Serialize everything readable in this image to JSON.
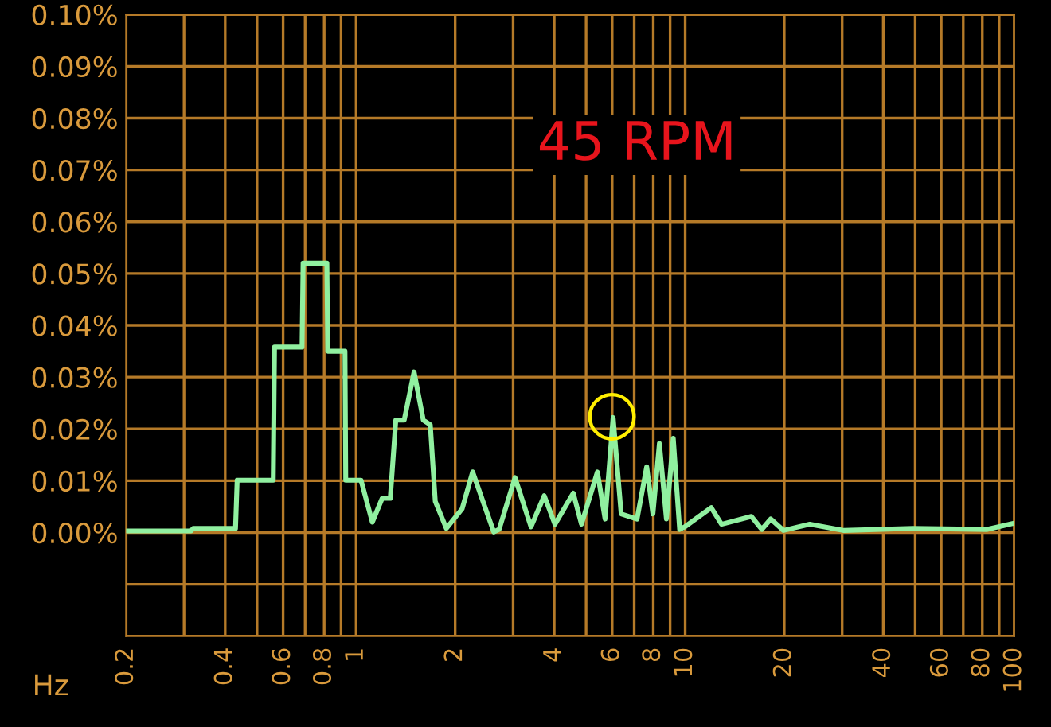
{
  "chart_data": {
    "type": "line",
    "xlabel": "Hz",
    "log": "x",
    "grid": true,
    "legend": false,
    "marker": "none",
    "line_style": "solid",
    "annotations": [
      "45 RPM"
    ],
    "xlim": [
      0.2,
      100
    ],
    "xticks": [
      0.2,
      {
        "value": 0.3,
        "label": null
      },
      0.4,
      {
        "value": 0.5,
        "label": null
      },
      0.6,
      {
        "value": 0.7,
        "label": null
      },
      0.8,
      {
        "value": 0.9,
        "label": null
      },
      1,
      2,
      {
        "value": 3,
        "label": null
      },
      4,
      {
        "value": 5,
        "label": null
      },
      6,
      {
        "value": 7,
        "label": null
      },
      8,
      {
        "value": 9,
        "label": null
      },
      10,
      20,
      {
        "value": 30,
        "label": null
      },
      40,
      {
        "value": 50,
        "label": null
      },
      60,
      {
        "value": 70,
        "label": null
      },
      80,
      {
        "value": 90,
        "label": null
      },
      100
    ],
    "ylim": [
      -0.02,
      0.1
    ],
    "yticks": [
      {
        "value": -0.02,
        "label": null
      },
      {
        "value": -0.01,
        "label": null
      },
      {
        "value": 0,
        "label": "0.00%"
      },
      {
        "value": 0.01,
        "label": "0.01%"
      },
      {
        "value": 0.02,
        "label": "0.02%"
      },
      {
        "value": 0.03,
        "label": "0.03%"
      },
      {
        "value": 0.04,
        "label": "0.04%"
      },
      {
        "value": 0.05,
        "label": "0.05%"
      },
      {
        "value": 0.06,
        "label": "0.06%"
      },
      {
        "value": 0.07,
        "label": "0.07%"
      },
      {
        "value": 0.08,
        "label": "0.08%"
      },
      {
        "value": 0.09,
        "label": "0.09%"
      },
      {
        "value": 0.1,
        "label": "0.10%"
      }
    ],
    "series": [
      {
        "color": "#90f0a0",
        "x": [
          0.2,
          0.315,
          0.32,
          0.43,
          0.435,
          0.56,
          0.565,
          0.685,
          0.69,
          0.815,
          0.82,
          0.925,
          0.93,
          1.035,
          1.12,
          1.2,
          1.27,
          1.32,
          1.4,
          1.5,
          1.6,
          1.68,
          1.74,
          1.88,
          2.1,
          2.26,
          2.43,
          2.62,
          2.72,
          3.04,
          3.4,
          3.73,
          4.02,
          4.57,
          4.84,
          5.41,
          5.71,
          6.04,
          6.39,
          7.14,
          7.64,
          7.98,
          8.35,
          8.77,
          9.2,
          9.62,
          9.98,
          12.0,
          12.9,
          15.9,
          17.1,
          18.2,
          19.9,
          23.9,
          30.4,
          49.2,
          82.8,
          100
        ],
        "values": [
          0.0003,
          0.0003,
          0.0008,
          0.0008,
          0.0101,
          0.0101,
          0.0358,
          0.0358,
          0.052,
          0.052,
          0.035,
          0.035,
          0.0101,
          0.0101,
          0.002,
          0.0066,
          0.0066,
          0.0217,
          0.0217,
          0.031,
          0.0217,
          0.0208,
          0.006,
          0.0008,
          0.0046,
          0.0117,
          0.006,
          0.0001,
          0.0006,
          0.0106,
          0.0011,
          0.0071,
          0.0016,
          0.0076,
          0.0016,
          0.0117,
          0.0026,
          0.0222,
          0.0036,
          0.0026,
          0.0127,
          0.0036,
          0.0172,
          0.0026,
          0.0182,
          0.0006,
          0.0011,
          0.0048,
          0.0016,
          0.0031,
          0.0006,
          0.0026,
          0.0004,
          0.0016,
          0.0004,
          0.0008,
          0.0006,
          0.0018
        ]
      }
    ]
  }
}
